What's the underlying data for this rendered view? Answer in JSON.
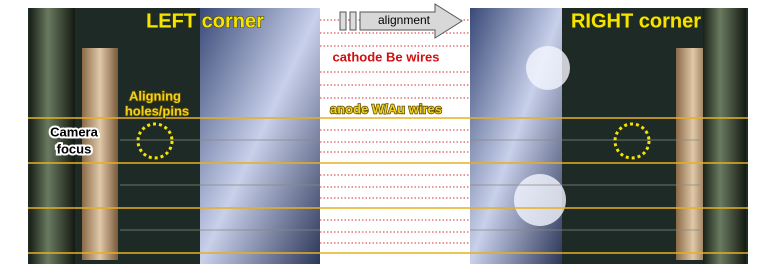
{
  "labels": {
    "left": "LEFT corner",
    "right": "RIGHT corner",
    "arrow": "alignment",
    "cathode": "cathode Be wires",
    "anode": "anode W/Au wires",
    "aligning": [
      "Aligning",
      "holes/pins"
    ],
    "camera": [
      "Camera",
      "focus"
    ]
  }
}
